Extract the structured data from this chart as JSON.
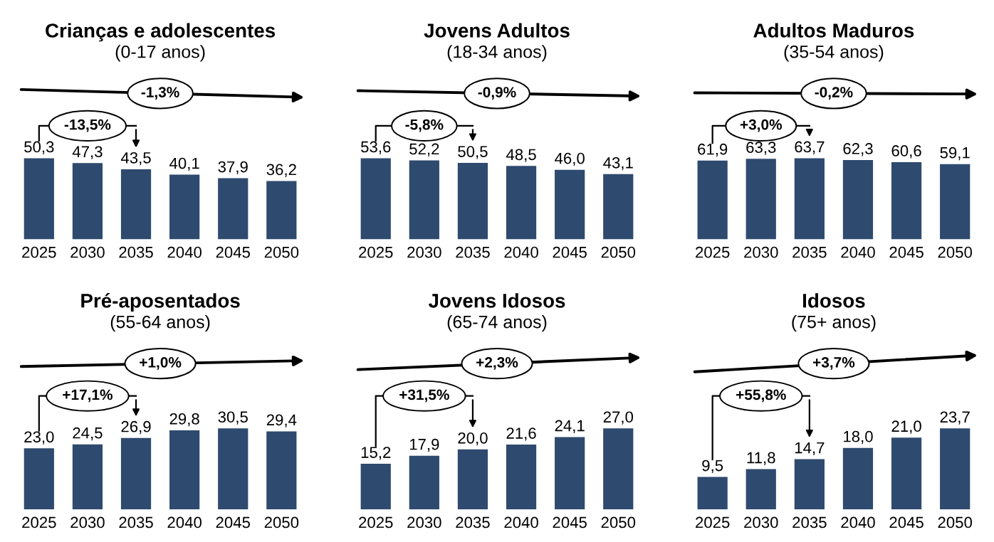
{
  "chart_data": [
    {
      "type": "bar",
      "title": "Crianças e adolescentes",
      "subtitle": "(0-17 anos)",
      "categories": [
        "2025",
        "2030",
        "2035",
        "2040",
        "2045",
        "2050"
      ],
      "values": [
        50.3,
        47.3,
        43.5,
        40.1,
        37.9,
        36.2
      ],
      "value_labels": [
        "50,3",
        "47,3",
        "43,5",
        "40,1",
        "37,9",
        "36,2"
      ],
      "color": "#2e4a6e",
      "annotations": [
        "-13,5%",
        "-1,3%"
      ]
    },
    {
      "type": "bar",
      "title": "Jovens Adultos",
      "subtitle": "(18-34 anos)",
      "categories": [
        "2025",
        "2030",
        "2035",
        "2040",
        "2045",
        "2050"
      ],
      "values": [
        53.6,
        52.2,
        50.5,
        48.5,
        46.0,
        43.1
      ],
      "value_labels": [
        "53,6",
        "52,2",
        "50,5",
        "48,5",
        "46,0",
        "43,1"
      ],
      "color": "#2e4a6e",
      "annotations": [
        "-5,8%",
        "-0,9%"
      ]
    },
    {
      "type": "bar",
      "title": "Adultos Maduros",
      "subtitle": "(35-54 anos)",
      "categories": [
        "2025",
        "2030",
        "2035",
        "2040",
        "2045",
        "2050"
      ],
      "values": [
        61.9,
        63.3,
        63.7,
        62.3,
        60.6,
        59.1
      ],
      "value_labels": [
        "61,9",
        "63,3",
        "63,7",
        "62,3",
        "60,6",
        "59,1"
      ],
      "color": "#2e4a6e",
      "annotations": [
        "+3,0%",
        "-0,2%"
      ]
    },
    {
      "type": "bar",
      "title": "Pré-aposentados",
      "subtitle": "(55-64 anos)",
      "categories": [
        "2025",
        "2030",
        "2035",
        "2040",
        "2045",
        "2050"
      ],
      "values": [
        23.0,
        24.5,
        26.9,
        29.8,
        30.5,
        29.4
      ],
      "value_labels": [
        "23,0",
        "24,5",
        "26,9",
        "29,8",
        "30,5",
        "29,4"
      ],
      "color": "#2e4a6e",
      "annotations": [
        "+17,1%",
        "+1,0%"
      ]
    },
    {
      "type": "bar",
      "title": "Jovens Idosos",
      "subtitle": "(65-74 anos)",
      "categories": [
        "2025",
        "2030",
        "2035",
        "2040",
        "2045",
        "2050"
      ],
      "values": [
        15.2,
        17.9,
        20.0,
        21.6,
        24.1,
        27.0
      ],
      "value_labels": [
        "15,2",
        "17,9",
        "20,0",
        "21,6",
        "24,1",
        "27,0"
      ],
      "color": "#2e4a6e",
      "annotations": [
        "+31,5%",
        "+2,3%"
      ]
    },
    {
      "type": "bar",
      "title": "Idosos",
      "subtitle": "(75+ anos)",
      "categories": [
        "2025",
        "2030",
        "2035",
        "2040",
        "2045",
        "2050"
      ],
      "values": [
        9.5,
        11.8,
        14.7,
        18.0,
        21.0,
        23.7
      ],
      "value_labels": [
        "9,5",
        "11,8",
        "14,7",
        "18,0",
        "21,0",
        "23,7"
      ],
      "color": "#2e4a6e",
      "annotations": [
        "+55,8%",
        "+3,7%"
      ]
    }
  ]
}
